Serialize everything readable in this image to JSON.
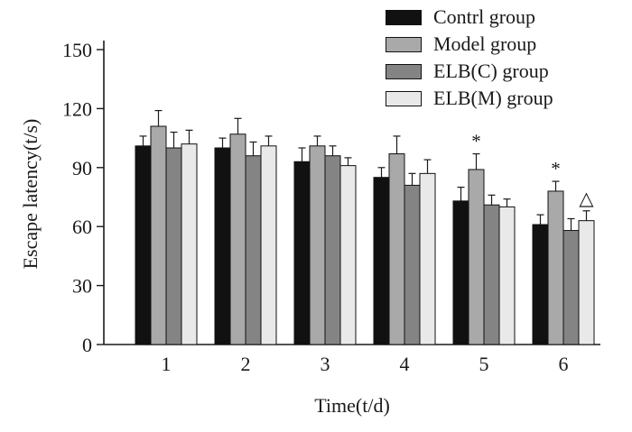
{
  "chart_data": {
    "type": "bar",
    "title": "",
    "xlabel": "Time(t/d)",
    "ylabel": "Escape latency(t/s)",
    "categories": [
      "1",
      "2",
      "3",
      "4",
      "5",
      "6"
    ],
    "yticks": [
      0,
      30,
      60,
      90,
      120,
      150
    ],
    "ylim": [
      0,
      150
    ],
    "grid": false,
    "legend_position": "top-right",
    "series": [
      {
        "name": "Contrl group",
        "color": "#111111",
        "values": [
          101,
          100,
          93,
          85,
          73,
          61
        ],
        "errors": [
          5,
          5,
          7,
          5,
          7,
          5
        ]
      },
      {
        "name": "Model group",
        "color": "#a9a9a9",
        "values": [
          111,
          107,
          101,
          97,
          89,
          78
        ],
        "errors": [
          8,
          8,
          5,
          9,
          8,
          5
        ]
      },
      {
        "name": "ELB(C) group",
        "color": "#848484",
        "values": [
          100,
          96,
          96,
          81,
          71,
          58
        ],
        "errors": [
          8,
          7,
          5,
          6,
          5,
          6
        ]
      },
      {
        "name": "ELB(M) group",
        "color": "#e9e9e9",
        "values": [
          102,
          101,
          91,
          87,
          70,
          63
        ],
        "errors": [
          7,
          5,
          4,
          7,
          4,
          5
        ]
      }
    ],
    "annotations": [
      {
        "category": "5",
        "series": "Model group",
        "symbol": "*"
      },
      {
        "category": "6",
        "series": "Model group",
        "symbol": "*"
      },
      {
        "category": "6",
        "series": "ELB(M) group",
        "symbol": "△"
      }
    ]
  }
}
